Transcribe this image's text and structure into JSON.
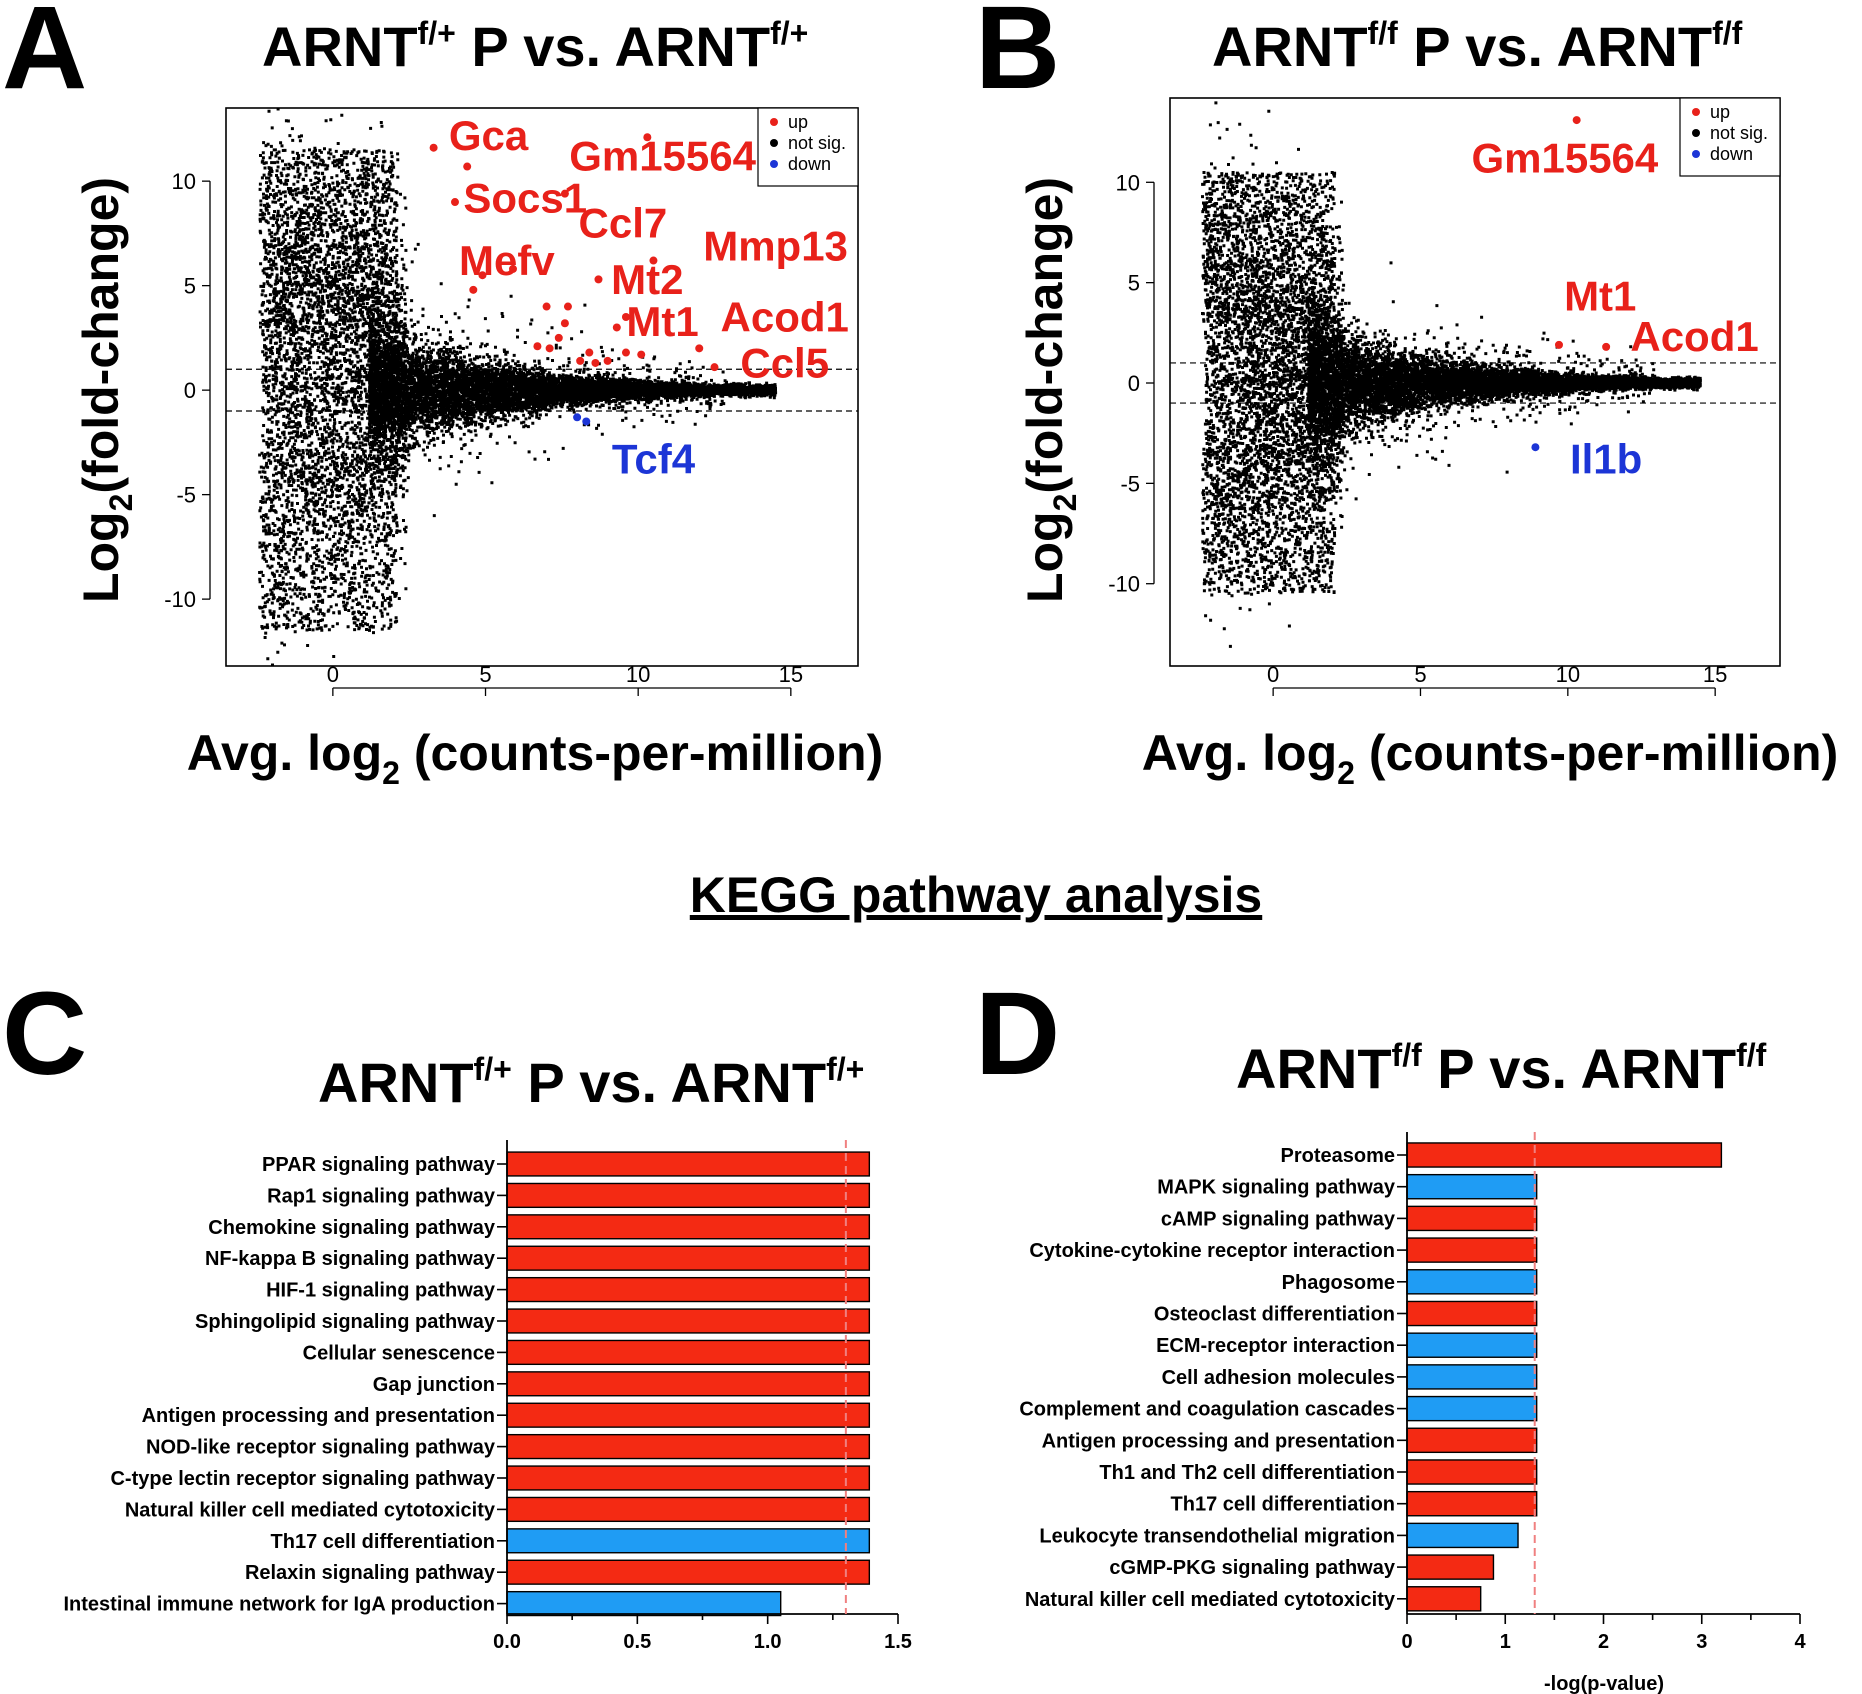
{
  "kegg_heading": "KEGG pathway analysis",
  "colors": {
    "up": "#e8211a",
    "down": "#1c35d6",
    "not_sig": "#000000",
    "bar_up": "#f42a13",
    "bar_down": "#1f9cf4",
    "threshold": "#f08080"
  },
  "panels": {
    "A": {
      "letter": "A",
      "title_main": "ARNT",
      "title_sup1": "f/+",
      "title_mid": " P vs. ARNT",
      "title_sup2": "f/+"
    },
    "B": {
      "letter": "B",
      "title_main": "ARNT",
      "title_sup1": "f/f",
      "title_mid": " P vs. ARNT",
      "title_sup2": "f/f"
    },
    "C": {
      "letter": "C",
      "title_main": "ARNT",
      "title_sup1": "f/+",
      "title_mid": " P vs. ARNT",
      "title_sup2": "f/+"
    },
    "D": {
      "letter": "D",
      "title_main": "ARNT",
      "title_sup1": "f/f",
      "title_mid": " P vs. ARNT",
      "title_sup2": "f/f"
    }
  },
  "chart_data": [
    {
      "panel": "A",
      "type": "scatter",
      "title": "ARNT f/+ P vs. ARNT f/+",
      "xlabel_main": "Avg. log",
      "xlabel_sub": "2",
      "xlabel_rest": " (counts-per-million)",
      "ylabel_main": "Log",
      "ylabel_sub": "2",
      "ylabel_rest": "(fold-change)",
      "xlim": [
        -3.5,
        17.2
      ],
      "ylim": [
        -13.2,
        13.5
      ],
      "xticks": [
        "0",
        "5",
        "10",
        "15"
      ],
      "xtick_values": [
        0,
        5,
        10,
        15
      ],
      "yticks": [
        "10",
        "5",
        "0",
        "-5",
        "-10"
      ],
      "ytick_values": [
        10,
        5,
        0,
        -5,
        -10
      ],
      "threshold_lines": [
        1,
        -1
      ],
      "legend": [
        "up",
        "not sig.",
        "down"
      ],
      "up_points": [
        [
          3.3,
          11.6
        ],
        [
          4.4,
          10.7
        ],
        [
          10.3,
          12.1
        ],
        [
          4.0,
          9.0
        ],
        [
          7.6,
          9.4
        ],
        [
          10.5,
          6.2
        ],
        [
          4.9,
          5.5
        ],
        [
          5.9,
          5.8
        ],
        [
          4.6,
          4.8
        ],
        [
          8.7,
          5.3
        ],
        [
          7.0,
          4.0
        ],
        [
          7.7,
          4.0
        ],
        [
          7.6,
          3.2
        ],
        [
          7.4,
          2.5
        ],
        [
          9.6,
          3.5
        ],
        [
          9.3,
          3.0
        ],
        [
          6.7,
          2.1
        ],
        [
          7.1,
          2.0
        ],
        [
          8.4,
          1.8
        ],
        [
          9.6,
          1.8
        ],
        [
          10.1,
          1.7
        ],
        [
          12.0,
          2.0
        ],
        [
          9.0,
          1.4
        ],
        [
          8.6,
          1.3
        ],
        [
          8.1,
          1.4
        ],
        [
          12.5,
          1.1
        ]
      ],
      "down_points": [
        [
          8.3,
          -1.5
        ],
        [
          8.0,
          -1.3
        ]
      ],
      "gene_labels": [
        {
          "text": "Gca",
          "x": 5.1,
          "y": 11.5,
          "dir": "up"
        },
        {
          "text": "Gm15564",
          "x": 10.8,
          "y": 10.5,
          "dir": "up"
        },
        {
          "text": "Socs1",
          "x": 6.3,
          "y": 8.5,
          "dir": "up"
        },
        {
          "text": "Ccl7",
          "x": 9.5,
          "y": 7.3,
          "dir": "up"
        },
        {
          "text": "Mmp13",
          "x": 14.5,
          "y": 6.2,
          "dir": "up"
        },
        {
          "text": "Mefv",
          "x": 5.7,
          "y": 5.5,
          "dir": "up"
        },
        {
          "text": "Mt2",
          "x": 10.3,
          "y": 4.6,
          "dir": "up"
        },
        {
          "text": "Acod1",
          "x": 14.8,
          "y": 2.8,
          "dir": "up"
        },
        {
          "text": "Mt1",
          "x": 10.8,
          "y": 2.6,
          "dir": "up"
        },
        {
          "text": "Ccl5",
          "x": 14.8,
          "y": 0.6,
          "dir": "up"
        },
        {
          "text": "Tcf4",
          "x": 10.5,
          "y": -4.0,
          "dir": "down"
        }
      ]
    },
    {
      "panel": "B",
      "type": "scatter",
      "title": "ARNT f/f P vs. ARNT f/f",
      "xlabel_main": "Avg. log",
      "xlabel_sub": "2",
      "xlabel_rest": " (counts-per-million)",
      "ylabel_main": "Log",
      "ylabel_sub": "2",
      "ylabel_rest": "(fold-change)",
      "xlim": [
        -3.5,
        17.2
      ],
      "ylim": [
        -14.1,
        14.2
      ],
      "xticks": [
        "0",
        "5",
        "10",
        "15"
      ],
      "xtick_values": [
        0,
        5,
        10,
        15
      ],
      "yticks": [
        "10",
        "5",
        "0",
        "-5",
        "-10"
      ],
      "ytick_values": [
        10,
        5,
        0,
        -5,
        -10
      ],
      "threshold_lines": [
        1,
        -1
      ],
      "legend": [
        "up",
        "not sig.",
        "down"
      ],
      "up_points": [
        [
          10.3,
          13.1
        ],
        [
          9.7,
          1.9
        ],
        [
          11.3,
          1.8
        ]
      ],
      "down_points": [
        [
          8.9,
          -3.2
        ]
      ],
      "gene_labels": [
        {
          "text": "Gm15564",
          "x": 9.9,
          "y": 10.5,
          "dir": "up"
        },
        {
          "text": "Mt1",
          "x": 11.1,
          "y": 3.6,
          "dir": "up"
        },
        {
          "text": "Acod1",
          "x": 14.3,
          "y": 1.6,
          "dir": "up"
        },
        {
          "text": "Il1b",
          "x": 11.3,
          "y": -4.5,
          "dir": "down"
        }
      ]
    },
    {
      "panel": "C",
      "type": "bar",
      "orientation": "horizontal",
      "title": "ARNT f/+ P vs. ARNT f/+",
      "xlabel": "",
      "xlim": [
        0,
        1.5
      ],
      "xticks": [
        "0.0",
        "0.5",
        "1.0",
        "1.5"
      ],
      "xtick_values": [
        0,
        0.5,
        1.0,
        1.5
      ],
      "threshold": 1.3,
      "categories": [
        "PPAR signaling pathway",
        "Rap1 signaling pathway",
        "Chemokine signaling pathway",
        "NF-kappa B signaling pathway",
        "HIF-1 signaling pathway",
        "Sphingolipid signaling pathway",
        "Cellular senescence",
        "Gap junction",
        "Antigen processing and presentation",
        "NOD-like receptor signaling pathway",
        "C-type lectin receptor signaling pathway",
        "Natural killer cell mediated cytotoxicity",
        "Th17 cell differentiation",
        "Relaxin signaling pathway",
        "Intestinal immune network for IgA production"
      ],
      "values": [
        1.39,
        1.39,
        1.39,
        1.39,
        1.39,
        1.39,
        1.39,
        1.39,
        1.39,
        1.39,
        1.39,
        1.39,
        1.39,
        1.39,
        1.05
      ],
      "directions": [
        "up",
        "up",
        "up",
        "up",
        "up",
        "up",
        "up",
        "up",
        "up",
        "up",
        "up",
        "up",
        "down",
        "up",
        "down"
      ]
    },
    {
      "panel": "D",
      "type": "bar",
      "orientation": "horizontal",
      "title": "ARNT f/f P vs. ARNT f/f",
      "xlabel": "-log(p-value)",
      "xlim": [
        0,
        4
      ],
      "xticks": [
        "0",
        "1",
        "2",
        "3",
        "4"
      ],
      "xtick_values": [
        0,
        1,
        2,
        3,
        4
      ],
      "threshold": 1.3,
      "categories": [
        "Proteasome",
        "MAPK signaling pathway",
        "cAMP signaling pathway",
        "Cytokine-cytokine receptor interaction",
        "Phagosome",
        "Osteoclast differentiation",
        "ECM-receptor interaction",
        "Cell adhesion molecules",
        "Complement and coagulation cascades",
        "Antigen processing and presentation",
        "Th1 and Th2 cell differentiation",
        "Th17 cell differentiation",
        "Leukocyte transendothelial migration",
        "cGMP-PKG signaling pathway",
        "Natural killer cell mediated cytotoxicity"
      ],
      "values": [
        3.2,
        1.32,
        1.32,
        1.32,
        1.32,
        1.32,
        1.32,
        1.32,
        1.32,
        1.32,
        1.32,
        1.32,
        1.13,
        0.88,
        0.75
      ],
      "directions": [
        "up",
        "down",
        "up",
        "up",
        "down",
        "up",
        "down",
        "down",
        "down",
        "up",
        "up",
        "up",
        "down",
        "up",
        "up"
      ]
    }
  ]
}
